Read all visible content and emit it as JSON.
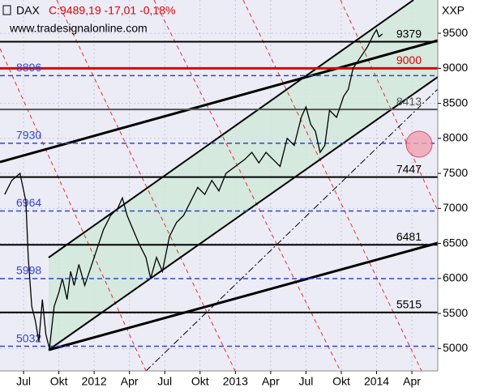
{
  "chart_data": {
    "type": "line",
    "title": "DAX",
    "subtitle": "C:9489,19 -17,01 -0,18%",
    "annotation": "www.tradesignalonline.com",
    "y_axis_label": "XXP",
    "x": [
      -1.6,
      -1.0,
      -0.3,
      0.2,
      0.4,
      0.7,
      1.0,
      1.3,
      1.6,
      1.9,
      2.2,
      2.6,
      3.0,
      3.3,
      3.7,
      4.0,
      4.3,
      4.7,
      5.2,
      5.6,
      6.2,
      6.8,
      7.4,
      8.0,
      8.4,
      8.8,
      9.3,
      9.8,
      10.4,
      10.8,
      11.3,
      11.8,
      12.4,
      13.0,
      13.6,
      14.2,
      14.8,
      15.4,
      16.0,
      16.6,
      17.2,
      18.0,
      18.8,
      19.4,
      20.0,
      20.6,
      21.2,
      21.8,
      22.4,
      23.0,
      23.6,
      24.0,
      24.4,
      24.8,
      25.2,
      25.6,
      26.0,
      26.6,
      27.2,
      27.6,
      28.0,
      28.4,
      28.8,
      29.2,
      29.5,
      29.8,
      30.0,
      30.2,
      30.5
    ],
    "series": [
      {
        "name": "DAX",
        "color": "#000000",
        "values": [
          7200,
          7400,
          7500,
          7100,
          6300,
          5600,
          5400,
          5100,
          5700,
          5200,
          5000,
          5600,
          5800,
          6000,
          5700,
          6100,
          5900,
          6200,
          5900,
          6100,
          6400,
          6700,
          6900,
          7000,
          7150,
          6900,
          6700,
          6500,
          6300,
          6000,
          6300,
          6100,
          6600,
          6800,
          6900,
          7100,
          7300,
          7200,
          7400,
          7250,
          7500,
          7600,
          7700,
          7800,
          7650,
          7800,
          7700,
          7600,
          8000,
          7900,
          8300,
          8450,
          8200,
          8100,
          7800,
          7900,
          8400,
          8300,
          8600,
          8700,
          9000,
          9100,
          9200,
          9300,
          9400,
          9500,
          9550,
          9450,
          9489
        ]
      }
    ],
    "xlim": [
      -2,
      35.2
    ],
    "xticks": [
      {
        "value": 0,
        "label": "Jul"
      },
      {
        "value": 3,
        "label": "Okt"
      },
      {
        "value": 6,
        "label": "2012"
      },
      {
        "value": 9,
        "label": "Apr"
      },
      {
        "value": 12,
        "label": "Jul"
      },
      {
        "value": 15,
        "label": "Okt"
      },
      {
        "value": 18,
        "label": "2013"
      },
      {
        "value": 21,
        "label": "Apr"
      },
      {
        "value": 24,
        "label": "Jul"
      },
      {
        "value": 27,
        "label": "Okt"
      },
      {
        "value": 30,
        "label": "2014"
      },
      {
        "value": 33,
        "label": "Apr"
      }
    ],
    "ylim": [
      4680,
      9975
    ],
    "yticks": [
      5000,
      5500,
      6000,
      6500,
      7000,
      7500,
      8000,
      8500,
      9000,
      9500
    ],
    "grid": true,
    "levels": [
      {
        "value": 9379,
        "color": "#000000",
        "style": "solid",
        "label_side": "right"
      },
      {
        "value": 9000,
        "color": "#dd0000",
        "style": "thick",
        "label_side": "right"
      },
      {
        "value": 8896,
        "color": "#3344cc",
        "style": "dashed",
        "label_side": "left"
      },
      {
        "value": 8413,
        "color": "#555555",
        "style": "solid",
        "label_side": "right"
      },
      {
        "value": 7930,
        "color": "#3344cc",
        "style": "dashed",
        "label_side": "left"
      },
      {
        "value": 7447,
        "color": "#000000",
        "style": "solid",
        "label_side": "right"
      },
      {
        "value": 6964,
        "color": "#3344cc",
        "style": "dashed",
        "label_side": "left"
      },
      {
        "value": 6481,
        "color": "#000000",
        "style": "solid",
        "label_side": "right"
      },
      {
        "value": 5998,
        "color": "#3344cc",
        "style": "dashed",
        "label_side": "left"
      },
      {
        "value": 5515,
        "color": "#000000",
        "style": "solid",
        "label_side": "right"
      },
      {
        "value": 5032,
        "color": "#3344cc",
        "style": "dashed",
        "label_side": "left"
      }
    ]
  }
}
